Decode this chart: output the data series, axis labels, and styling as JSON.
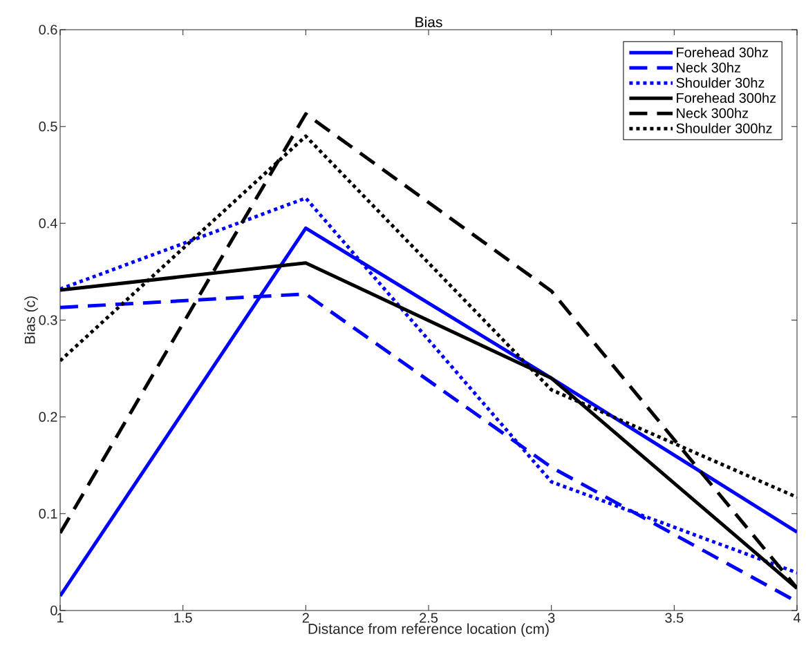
{
  "chart_data": {
    "type": "line",
    "title": "Bias",
    "xlabel": "Distance from reference location (cm)",
    "ylabel": "Bias (c)",
    "x": [
      1,
      2,
      3,
      4
    ],
    "series": [
      {
        "name": "Forehead 30hz",
        "color": "#0000ff",
        "line_style": "solid",
        "values": [
          0.015,
          0.395,
          0.24,
          0.081
        ]
      },
      {
        "name": "Neck 30hz",
        "color": "#0000ff",
        "line_style": "dashed",
        "values": [
          0.313,
          0.327,
          0.148,
          0.009
        ]
      },
      {
        "name": "Shoulder 30hz",
        "color": "#0000ff",
        "line_style": "dotted",
        "values": [
          0.332,
          0.426,
          0.133,
          0.039
        ]
      },
      {
        "name": "Forehead 300hz",
        "color": "#000000",
        "line_style": "solid",
        "values": [
          0.331,
          0.359,
          0.24,
          0.023
        ]
      },
      {
        "name": "Neck 300hz",
        "color": "#000000",
        "line_style": "dashed",
        "values": [
          0.08,
          0.513,
          0.33,
          0.023
        ]
      },
      {
        "name": "Shoulder 300hz",
        "color": "#000000",
        "line_style": "dotted",
        "values": [
          0.258,
          0.49,
          0.228,
          0.117
        ]
      }
    ],
    "xlim": [
      1,
      4
    ],
    "ylim": [
      0,
      0.6
    ],
    "xticks": [
      1,
      1.5,
      2,
      2.5,
      3,
      3.5,
      4
    ],
    "yticks": [
      0,
      0.1,
      0.2,
      0.3,
      0.4,
      0.5,
      0.6
    ],
    "legend": "top right",
    "grid": false,
    "marker": "none"
  }
}
